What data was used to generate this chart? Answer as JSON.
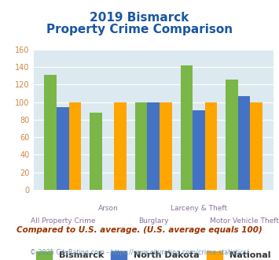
{
  "title_line1": "2019 Bismarck",
  "title_line2": "Property Crime Comparison",
  "categories": [
    "All Property Crime",
    "Arson",
    "Burglary",
    "Larceny & Theft",
    "Motor Vehicle Theft"
  ],
  "bismarck": [
    131,
    88,
    100,
    142,
    126
  ],
  "north_dakota": [
    94,
    null,
    100,
    91,
    107
  ],
  "national": [
    100,
    100,
    100,
    100,
    100
  ],
  "color_bismarck": "#7ab648",
  "color_nd": "#4472c4",
  "color_national": "#ffa500",
  "ylim": [
    0,
    160
  ],
  "yticks": [
    0,
    20,
    40,
    60,
    80,
    100,
    120,
    140,
    160
  ],
  "bg_color": "#dce9f0",
  "footnote": "Compared to U.S. average. (U.S. average equals 100)",
  "copyright": "© 2025 CityRating.com - https://www.cityrating.com/crime-statistics/",
  "title_color": "#1a56a0",
  "xlabel_color": "#8870a0",
  "legend_label_color": "#333333",
  "footnote_color": "#993300",
  "copyright_color": "#7090b0"
}
